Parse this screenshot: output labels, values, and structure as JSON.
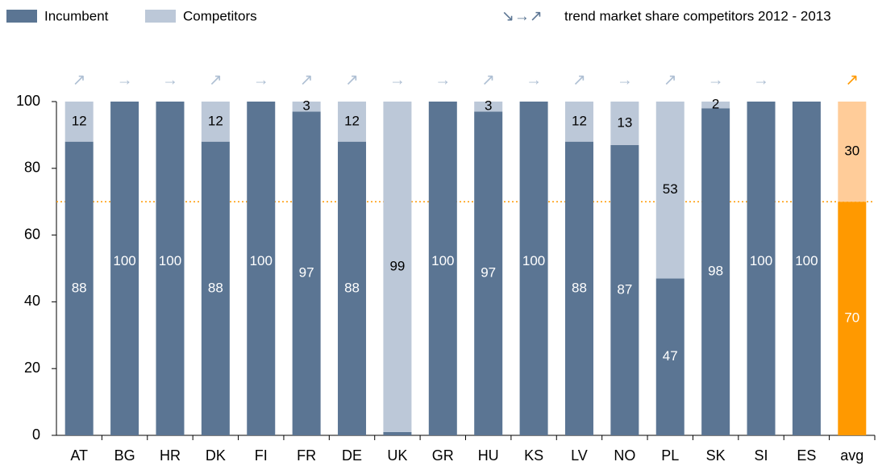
{
  "chart_data": {
    "type": "stacked_bar",
    "categories": [
      "AT",
      "BG",
      "HR",
      "DK",
      "FI",
      "FR",
      "DE",
      "UK",
      "GR",
      "HU",
      "KS",
      "LV",
      "NO",
      "PL",
      "SK",
      "SI",
      "ES",
      "avg"
    ],
    "series": [
      {
        "name": "Incumbent",
        "color": "#5b7593",
        "values": [
          88,
          100,
          100,
          88,
          100,
          97,
          88,
          1,
          100,
          97,
          100,
          88,
          87,
          47,
          98,
          100,
          100,
          70
        ]
      },
      {
        "name": "Competitors",
        "color": "#bcc8d8",
        "values": [
          12,
          0,
          0,
          12,
          0,
          3,
          12,
          99,
          0,
          3,
          0,
          12,
          13,
          53,
          2,
          0,
          0,
          30
        ]
      }
    ],
    "highlight": {
      "index": 17,
      "colors": [
        "#ff9900",
        "#ffcc99"
      ]
    },
    "trends": [
      "↗",
      "→",
      "→",
      "↗",
      "→",
      "↗",
      "↗",
      "→",
      "→",
      "↗",
      "→",
      "↗",
      "→",
      "↗",
      "→",
      "→",
      null,
      "↗"
    ],
    "trend_legend": {
      "symbols": "↘→↗",
      "label": "trend market share competitors 2012 - 2013"
    },
    "ylim": [
      0,
      100
    ],
    "yticks": [
      0,
      20,
      40,
      60,
      80,
      100
    ]
  }
}
